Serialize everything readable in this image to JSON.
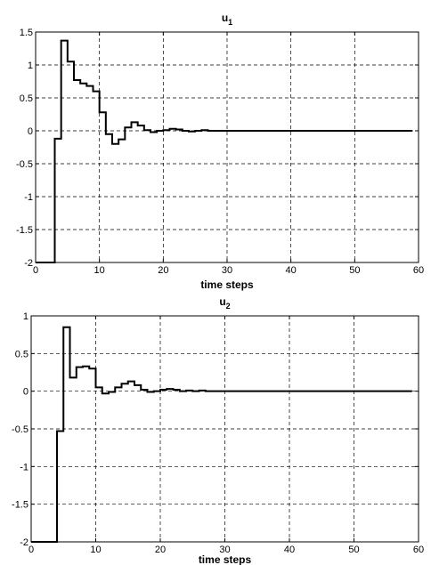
{
  "chart_data": [
    {
      "type": "line",
      "step": true,
      "title": "u",
      "title_subscript": "1",
      "xlabel": "time steps",
      "ylabel": "",
      "xlim": [
        0,
        60
      ],
      "ylim": [
        -2,
        1.5
      ],
      "grid": true,
      "grid_style": "dashed",
      "xticks": [
        0,
        10,
        20,
        30,
        40,
        50,
        60
      ],
      "yticks": [
        -2,
        -1.5,
        -1,
        -0.5,
        0,
        0.5,
        1,
        1.5
      ],
      "series": [
        {
          "color": "#000000",
          "x": [
            0,
            1,
            2,
            3,
            4,
            5,
            6,
            7,
            8,
            9,
            10,
            11,
            12,
            13,
            14,
            15,
            16,
            17,
            18,
            19,
            20,
            21,
            22,
            23,
            24,
            25,
            26,
            27,
            28,
            29,
            30,
            59
          ],
          "y": [
            -2,
            -2,
            -2,
            -0.12,
            1.37,
            1.05,
            0.77,
            0.72,
            0.68,
            0.6,
            0.28,
            -0.05,
            -0.2,
            -0.13,
            0.05,
            0.13,
            0.08,
            0.01,
            -0.02,
            0.0,
            0.01,
            0.03,
            0.02,
            0.0,
            -0.01,
            0.0,
            0.01,
            0.0,
            0.0,
            0.0,
            0.0,
            0.0
          ]
        }
      ]
    },
    {
      "type": "line",
      "step": true,
      "title": "u",
      "title_subscript": "2",
      "xlabel": "time steps",
      "ylabel": "",
      "xlim": [
        0,
        60
      ],
      "ylim": [
        -2,
        1
      ],
      "grid": true,
      "grid_style": "dashed",
      "xticks": [
        0,
        10,
        20,
        30,
        40,
        50,
        60
      ],
      "yticks": [
        -2,
        -1.5,
        -1,
        -0.5,
        0,
        0.5,
        1
      ],
      "series": [
        {
          "color": "#000000",
          "x": [
            0,
            1,
            2,
            3,
            4,
            5,
            6,
            7,
            8,
            9,
            10,
            11,
            12,
            13,
            14,
            15,
            16,
            17,
            18,
            19,
            20,
            21,
            22,
            23,
            24,
            25,
            26,
            27,
            28,
            29,
            30,
            59
          ],
          "y": [
            -2,
            -2,
            -2,
            -2,
            -0.53,
            0.85,
            0.18,
            0.32,
            0.33,
            0.3,
            0.05,
            -0.03,
            -0.01,
            0.05,
            0.1,
            0.13,
            0.08,
            0.02,
            -0.01,
            0.0,
            0.02,
            0.03,
            0.02,
            0.0,
            0.01,
            0.0,
            0.01,
            0.0,
            0.0,
            0.0,
            0.0,
            0.0
          ]
        }
      ]
    }
  ]
}
